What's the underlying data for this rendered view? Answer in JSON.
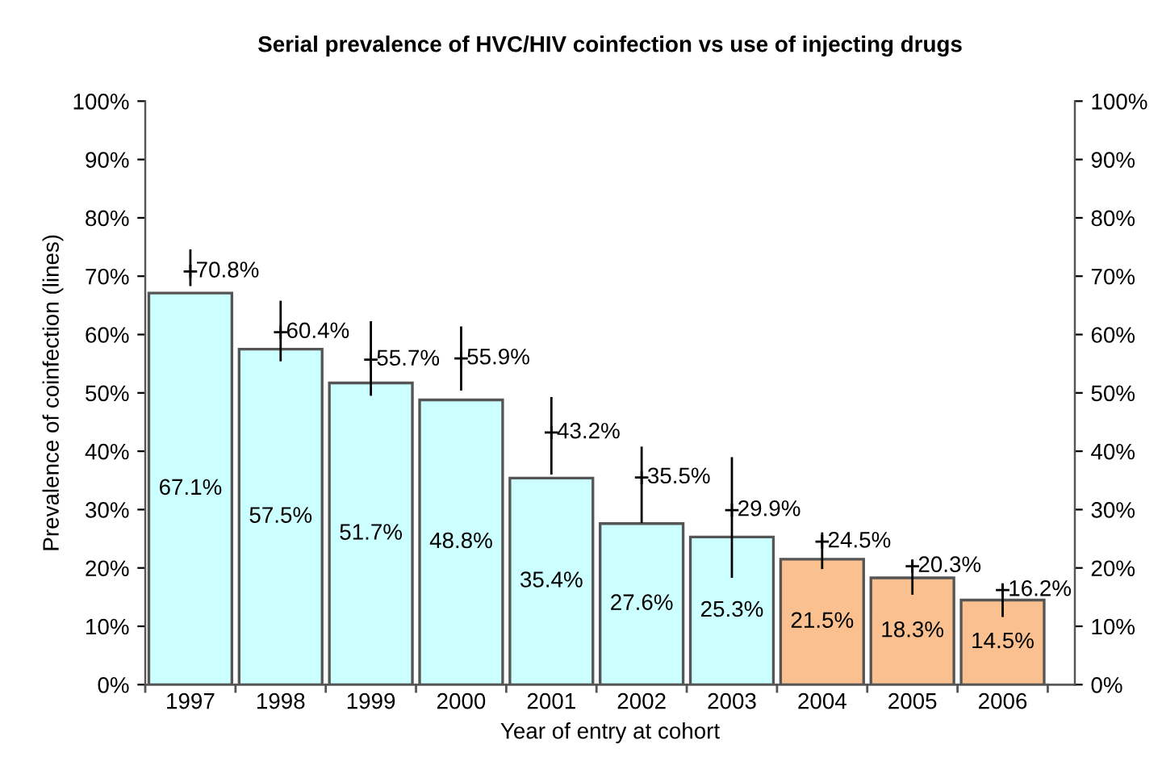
{
  "chart_data": {
    "type": "bar",
    "title": "Serial prevalence of HVC/HIV coinfection vs use of injecting drugs",
    "xlabel": "Year of entry at cohort",
    "ylabel": "Prevalence of coinfection (lines)",
    "categories": [
      "1997",
      "1998",
      "1999",
      "2000",
      "2001",
      "2002",
      "2003",
      "2004",
      "2005",
      "2006"
    ],
    "series": [
      {
        "value_labels": [
          "67.1%",
          "57.5%",
          "51.7%",
          "48.8%",
          "35.4%",
          "27.6%",
          "25.3%",
          "21.5%",
          "18.3%",
          "14.5%"
        ],
        "colors": [
          "#ccffff",
          "#ccffff",
          "#ccffff",
          "#ccffff",
          "#ccffff",
          "#ccffff",
          "#ccffff",
          "#fac090",
          "#fac090",
          "#fac090"
        ],
        "values": [
          67.1,
          57.5,
          51.7,
          48.8,
          35.4,
          27.6,
          25.3,
          21.5,
          18.3,
          14.5
        ]
      },
      {
        "type": "scatter",
        "color": "#000000",
        "marker": "cross",
        "value_labels": [
          "70.8%",
          "60.4%",
          "55.7%",
          "55.9%",
          "43.2%",
          "35.5%",
          "29.9%",
          "24.5%",
          "20.3%",
          "16.2%"
        ],
        "values": [
          70.8,
          60.4,
          55.7,
          55.9,
          43.2,
          35.5,
          29.9,
          24.5,
          20.3,
          16.2
        ],
        "errors": [
          [
            68.5,
            74.4
          ],
          [
            55.6,
            65.6
          ],
          [
            49.7,
            62.1
          ],
          [
            50.6,
            61.2
          ],
          [
            36.2,
            49.1
          ],
          [
            27.9,
            40.6
          ],
          [
            18.5,
            38.8
          ],
          [
            20.0,
            25.9
          ],
          [
            15.6,
            21.2
          ],
          [
            11.8,
            17.1
          ]
        ]
      }
    ],
    "grid": false,
    "legend": false,
    "ylim": [
      0,
      100
    ],
    "yticks": [
      {
        "value": 0,
        "label": "0%"
      },
      {
        "value": 10,
        "label": "10%"
      },
      {
        "value": 20,
        "label": "20%"
      },
      {
        "value": 30,
        "label": "30%"
      },
      {
        "value": 40,
        "label": "40%"
      },
      {
        "value": 50,
        "label": "50%"
      },
      {
        "value": 60,
        "label": "60%"
      },
      {
        "value": 70,
        "label": "70%"
      },
      {
        "value": 80,
        "label": "80%"
      },
      {
        "value": 90,
        "label": "90%"
      },
      {
        "value": 100,
        "label": "100%"
      }
    ],
    "y2lim": [
      0,
      100
    ],
    "y2ticks": [
      {
        "value": 0,
        "label": "0%"
      },
      {
        "value": 10,
        "label": "10%"
      },
      {
        "value": 20,
        "label": "20%"
      },
      {
        "value": 30,
        "label": "30%"
      },
      {
        "value": 40,
        "label": "40%"
      },
      {
        "value": 50,
        "label": "50%"
      },
      {
        "value": 60,
        "label": "60%"
      },
      {
        "value": 70,
        "label": "70%"
      },
      {
        "value": 80,
        "label": "80%"
      },
      {
        "value": 90,
        "label": "90%"
      },
      {
        "value": 100,
        "label": "100%"
      }
    ]
  }
}
